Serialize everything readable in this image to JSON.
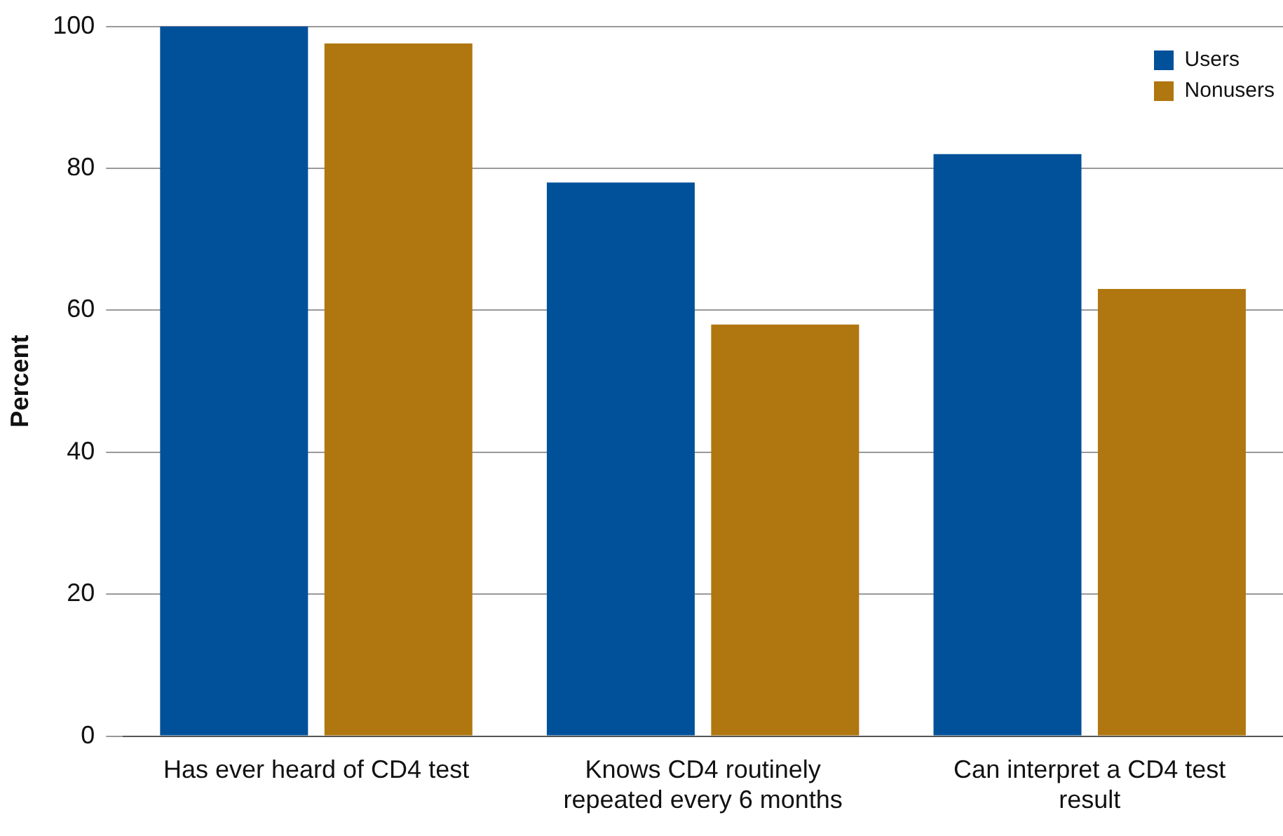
{
  "chart_data": {
    "type": "bar",
    "ylabel": "Percent",
    "categories": [
      "Has ever heard of CD4 test",
      "Knows CD4 routinely repeated every 6 months",
      "Can interpret a CD4 test result"
    ],
    "series": [
      {
        "name": "Users",
        "color": "#00519a",
        "values": [
          100,
          78,
          82
        ]
      },
      {
        "name": "Nonusers",
        "color": "#b0760f",
        "values": [
          97.6,
          58,
          63
        ]
      }
    ],
    "ylim": [
      0,
      100
    ],
    "yticks": [
      0,
      20,
      40,
      60,
      80,
      100
    ],
    "grid": "y",
    "legend": "top right"
  }
}
